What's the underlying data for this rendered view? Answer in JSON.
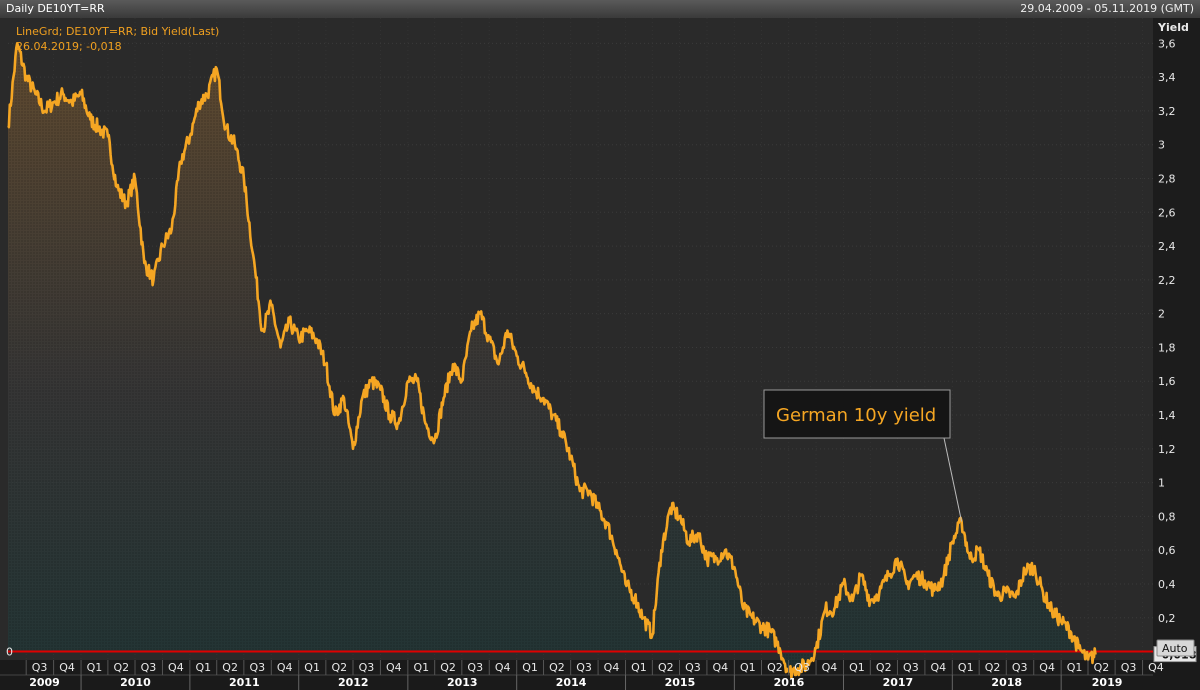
{
  "window": {
    "title": "Daily DE10YT=RR",
    "range": "29.04.2009 - 05.11.2019 (GMT)"
  },
  "controls": {
    "auto_label": "Auto"
  },
  "colors": {
    "series": "#f5a623",
    "zero_line": "#e00000",
    "background": "#2a2a2a"
  },
  "chart_data": {
    "type": "line",
    "legend": [
      "LineGrd; DE10YT=RR; Bid Yield(Last)",
      "26.04.2019; -0,018"
    ],
    "ylabel": "Yield",
    "ylim": [
      -0.05,
      3.75
    ],
    "yticks": [
      "3,6",
      "3,4",
      "3,2",
      "3",
      "2,8",
      "2,6",
      "2,4",
      "2,2",
      "2",
      "1,8",
      "1,6",
      "1,4",
      "1,2",
      "1",
      "0,8",
      "0,6",
      "0,4",
      "0,2"
    ],
    "zero_label": "0",
    "last_value_label": "-0,018",
    "quarter_labels": [
      "Q3",
      "Q4",
      "Q1",
      "Q2",
      "Q3",
      "Q4",
      "Q1",
      "Q2",
      "Q3",
      "Q4",
      "Q1",
      "Q2",
      "Q3",
      "Q4",
      "Q1",
      "Q2",
      "Q3",
      "Q4",
      "Q1",
      "Q2",
      "Q3",
      "Q4",
      "Q1",
      "Q2",
      "Q3",
      "Q4",
      "Q1",
      "Q2",
      "Q3",
      "Q4",
      "Q1",
      "Q2",
      "Q3",
      "Q4",
      "Q1",
      "Q2",
      "Q3",
      "Q4",
      "Q1",
      "Q2",
      "Q3",
      "Q4"
    ],
    "year_labels": [
      "2009",
      "2010",
      "2011",
      "2012",
      "2013",
      "2014",
      "2015",
      "2016",
      "2017",
      "2018",
      "2019"
    ],
    "annotation": {
      "text": "German 10y yield",
      "date": "2018-02-01",
      "value": 0.77
    },
    "x_start": "2009-05-01",
    "x_end": "2019-11-05",
    "series": [
      {
        "points": [
          [
            "2009-05-01",
            3.1
          ],
          [
            "2009-06-01",
            3.6
          ],
          [
            "2009-07-01",
            3.4
          ],
          [
            "2009-08-01",
            3.3
          ],
          [
            "2009-09-01",
            3.2
          ],
          [
            "2009-10-01",
            3.25
          ],
          [
            "2009-11-01",
            3.3
          ],
          [
            "2009-12-01",
            3.25
          ],
          [
            "2010-01-01",
            3.3
          ],
          [
            "2010-02-01",
            3.15
          ],
          [
            "2010-03-01",
            3.1
          ],
          [
            "2010-04-01",
            3.05
          ],
          [
            "2010-05-01",
            2.75
          ],
          [
            "2010-06-01",
            2.65
          ],
          [
            "2010-07-01",
            2.8
          ],
          [
            "2010-08-01",
            2.3
          ],
          [
            "2010-09-01",
            2.2
          ],
          [
            "2010-10-01",
            2.4
          ],
          [
            "2010-11-01",
            2.5
          ],
          [
            "2010-12-01",
            2.9
          ],
          [
            "2011-01-01",
            3.05
          ],
          [
            "2011-02-01",
            3.25
          ],
          [
            "2011-03-01",
            3.3
          ],
          [
            "2011-04-01",
            3.45
          ],
          [
            "2011-05-01",
            3.1
          ],
          [
            "2011-06-01",
            3.0
          ],
          [
            "2011-07-01",
            2.8
          ],
          [
            "2011-08-01",
            2.35
          ],
          [
            "2011-09-01",
            1.9
          ],
          [
            "2011-10-01",
            2.05
          ],
          [
            "2011-11-01",
            1.8
          ],
          [
            "2011-12-01",
            1.95
          ],
          [
            "2012-01-01",
            1.85
          ],
          [
            "2012-02-01",
            1.9
          ],
          [
            "2012-03-01",
            1.85
          ],
          [
            "2012-04-01",
            1.7
          ],
          [
            "2012-05-01",
            1.4
          ],
          [
            "2012-06-01",
            1.5
          ],
          [
            "2012-07-01",
            1.2
          ],
          [
            "2012-08-01",
            1.5
          ],
          [
            "2012-09-01",
            1.6
          ],
          [
            "2012-10-01",
            1.55
          ],
          [
            "2012-11-01",
            1.4
          ],
          [
            "2012-12-01",
            1.35
          ],
          [
            "2013-01-01",
            1.6
          ],
          [
            "2013-02-01",
            1.6
          ],
          [
            "2013-03-01",
            1.35
          ],
          [
            "2013-04-01",
            1.25
          ],
          [
            "2013-05-01",
            1.5
          ],
          [
            "2013-06-01",
            1.7
          ],
          [
            "2013-07-01",
            1.6
          ],
          [
            "2013-08-01",
            1.9
          ],
          [
            "2013-09-01",
            2.0
          ],
          [
            "2013-10-01",
            1.85
          ],
          [
            "2013-11-01",
            1.7
          ],
          [
            "2013-12-01",
            1.9
          ],
          [
            "2014-01-01",
            1.75
          ],
          [
            "2014-02-01",
            1.65
          ],
          [
            "2014-03-01",
            1.55
          ],
          [
            "2014-04-01",
            1.5
          ],
          [
            "2014-05-01",
            1.4
          ],
          [
            "2014-06-01",
            1.3
          ],
          [
            "2014-07-01",
            1.15
          ],
          [
            "2014-08-01",
            0.95
          ],
          [
            "2014-09-01",
            0.95
          ],
          [
            "2014-10-01",
            0.85
          ],
          [
            "2014-11-01",
            0.75
          ],
          [
            "2014-12-01",
            0.6
          ],
          [
            "2015-01-01",
            0.4
          ],
          [
            "2015-02-01",
            0.32
          ],
          [
            "2015-03-01",
            0.2
          ],
          [
            "2015-04-01",
            0.1
          ],
          [
            "2015-05-01",
            0.6
          ],
          [
            "2015-06-01",
            0.85
          ],
          [
            "2015-07-01",
            0.8
          ],
          [
            "2015-08-01",
            0.65
          ],
          [
            "2015-09-01",
            0.7
          ],
          [
            "2015-10-01",
            0.55
          ],
          [
            "2015-11-01",
            0.55
          ],
          [
            "2015-12-01",
            0.6
          ],
          [
            "2016-01-01",
            0.5
          ],
          [
            "2016-02-01",
            0.25
          ],
          [
            "2016-03-01",
            0.2
          ],
          [
            "2016-04-01",
            0.15
          ],
          [
            "2016-05-01",
            0.12
          ],
          [
            "2016-06-01",
            0.02
          ],
          [
            "2016-07-01",
            -0.12
          ],
          [
            "2016-08-01",
            -0.1
          ],
          [
            "2016-09-01",
            -0.08
          ],
          [
            "2016-10-01",
            0.02
          ],
          [
            "2016-11-01",
            0.25
          ],
          [
            "2016-12-01",
            0.25
          ],
          [
            "2017-01-01",
            0.4
          ],
          [
            "2017-02-01",
            0.3
          ],
          [
            "2017-03-01",
            0.45
          ],
          [
            "2017-04-01",
            0.3
          ],
          [
            "2017-05-01",
            0.35
          ],
          [
            "2017-06-01",
            0.45
          ],
          [
            "2017-07-01",
            0.55
          ],
          [
            "2017-08-01",
            0.4
          ],
          [
            "2017-09-01",
            0.45
          ],
          [
            "2017-10-01",
            0.42
          ],
          [
            "2017-11-01",
            0.36
          ],
          [
            "2017-12-01",
            0.43
          ],
          [
            "2018-01-01",
            0.65
          ],
          [
            "2018-02-01",
            0.77
          ],
          [
            "2018-03-01",
            0.55
          ],
          [
            "2018-04-01",
            0.6
          ],
          [
            "2018-05-01",
            0.45
          ],
          [
            "2018-06-01",
            0.33
          ],
          [
            "2018-07-01",
            0.35
          ],
          [
            "2018-08-01",
            0.32
          ],
          [
            "2018-09-01",
            0.48
          ],
          [
            "2018-10-01",
            0.5
          ],
          [
            "2018-11-01",
            0.35
          ],
          [
            "2018-12-01",
            0.24
          ],
          [
            "2019-01-01",
            0.18
          ],
          [
            "2019-02-01",
            0.12
          ],
          [
            "2019-03-01",
            0.02
          ],
          [
            "2019-04-01",
            -0.05
          ],
          [
            "2019-04-26",
            -0.018
          ]
        ]
      }
    ]
  }
}
